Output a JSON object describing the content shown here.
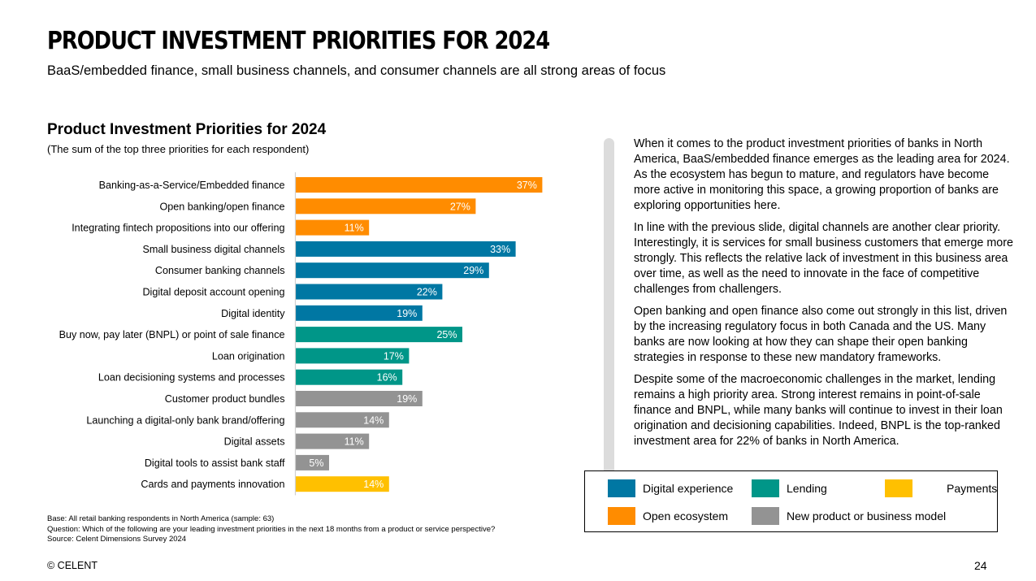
{
  "slide": {
    "title": "PRODUCT INVESTMENT PRIORITIES FOR 2024",
    "subtitle": "BaaS/embedded finance, small business channels, and consumer channels are all strong areas of focus",
    "page_number": "24",
    "copyright": "© CELENT"
  },
  "chart_data": {
    "type": "bar",
    "orientation": "horizontal",
    "title": "Product Investment Priorities for 2024",
    "subtitle": "(The sum of the top three priorities for each respondent)",
    "xlabel": "",
    "ylabel": "",
    "unit": "%",
    "xlim": [
      0,
      40
    ],
    "grid": false,
    "categories": [
      "Banking-as-a-Service/Embedded finance",
      "Open banking/open finance",
      "Integrating fintech propositions into our offering",
      "Small business digital channels",
      "Consumer banking channels",
      "Digital deposit account opening",
      "Digital identity",
      "Buy now, pay later (BNPL) or point of sale finance",
      "Loan origination",
      "Loan decisioning systems and processes",
      "Customer product bundles",
      "Launching a digital-only bank brand/offering",
      "Digital assets",
      "Digital tools to assist bank staff",
      "Cards and payments innovation"
    ],
    "values": [
      37,
      27,
      11,
      33,
      29,
      22,
      19,
      25,
      17,
      16,
      19,
      14,
      11,
      5,
      14
    ],
    "data_labels": [
      "37%",
      "27%",
      "11%",
      "33%",
      "29%",
      "22%",
      "19%",
      "25%",
      "17%",
      "16%",
      "19%",
      "14%",
      "11%",
      "5%",
      "14%"
    ],
    "groups": [
      "Open ecosystem",
      "Open ecosystem",
      "Open ecosystem",
      "Digital experience",
      "Digital experience",
      "Digital experience",
      "Digital experience",
      "Lending",
      "Lending",
      "Lending",
      "New product or business model",
      "New product or business model",
      "New product or business model",
      "New product or business model",
      "Payments"
    ],
    "legend": [
      {
        "name": "Digital experience",
        "color": "#0077A3"
      },
      {
        "name": "Lending",
        "color": "#009688"
      },
      {
        "name": "Payments",
        "color": "#FFC000"
      },
      {
        "name": "Open ecosystem",
        "color": "#FF8C00"
      },
      {
        "name": "New product or business model",
        "color": "#939393"
      }
    ],
    "legend_position": "bottom-right"
  },
  "footnotes": {
    "base": "Base: All retail banking respondents in North America (sample: 63)",
    "question": "Question: Which of the following are your leading investment priorities in the next 18 months from a product or service perspective?",
    "source": "Source: Celent Dimensions Survey 2024"
  },
  "commentary": [
    "When it comes to the product investment priorities of banks in North America, BaaS/embedded finance emerges as the leading area for 2024. As the ecosystem has begun to mature, and regulators have become more active in monitoring this space, a growing proportion of banks are exploring opportunities here.",
    "In line with the previous slide, digital channels are another clear priority. Interestingly, it is services for small business customers that emerge more strongly. This reflects the relative lack of investment in this business area over time, as well as the need to innovate in the face of competitive challenges from challengers.",
    "Open banking and open finance also come out strongly in this list, driven by the increasing regulatory focus in both Canada and the US. Many banks are now looking at how they can shape their open banking strategies in response to these new mandatory frameworks.",
    "Despite some of the macroeconomic challenges in the market, lending remains a high priority area. Strong interest remains in point-of-sale finance and BNPL, while many banks will continue to invest in their loan origination and decisioning capabilities. Indeed, BNPL is the top-ranked investment area for 22% of banks in North America."
  ]
}
